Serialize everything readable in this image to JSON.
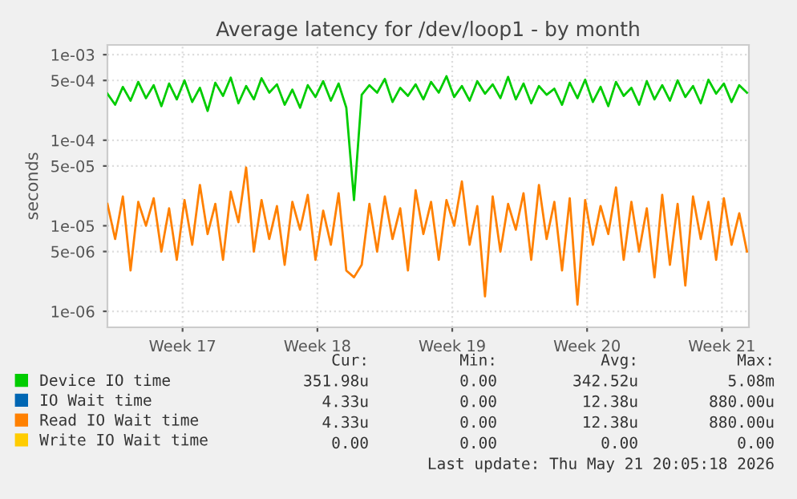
{
  "chart_data": {
    "type": "line",
    "title": "Average latency for /dev/loop1 - by month",
    "ylabel": "seconds",
    "x": [
      "2026-04-18T12:00",
      "2026-04-18T21:36",
      "2026-04-19T07:12",
      "2026-04-19T16:48",
      "2026-04-20T02:24",
      "2026-04-20T12:00",
      "2026-04-20T21:36",
      "2026-04-21T07:12",
      "2026-04-21T16:48",
      "2026-04-22T02:24",
      "2026-04-22T12:00",
      "2026-04-22T21:36",
      "2026-04-23T07:12",
      "2026-04-23T16:48",
      "2026-04-24T02:24",
      "2026-04-24T12:00",
      "2026-04-24T21:36",
      "2026-04-25T07:12",
      "2026-04-25T16:48",
      "2026-04-26T02:24",
      "2026-04-26T12:00",
      "2026-04-26T21:36",
      "2026-04-27T07:12",
      "2026-04-27T16:48",
      "2026-04-28T02:24",
      "2026-04-28T12:00",
      "2026-04-28T21:36",
      "2026-04-29T07:12",
      "2026-04-29T16:48",
      "2026-04-30T02:24",
      "2026-04-30T12:00",
      "2026-04-30T21:36",
      "2026-05-01T07:12",
      "2026-05-01T16:48",
      "2026-05-02T02:24",
      "2026-05-02T12:00",
      "2026-05-02T21:36",
      "2026-05-03T07:12",
      "2026-05-03T16:48",
      "2026-05-04T02:24",
      "2026-05-04T12:00",
      "2026-05-04T21:36",
      "2026-05-05T07:12",
      "2026-05-05T16:48",
      "2026-05-06T02:24",
      "2026-05-06T12:00",
      "2026-05-06T21:36",
      "2026-05-07T07:12",
      "2026-05-07T16:48",
      "2026-05-08T02:24",
      "2026-05-08T12:00",
      "2026-05-08T21:36",
      "2026-05-09T07:12",
      "2026-05-09T16:48",
      "2026-05-10T02:24",
      "2026-05-10T12:00",
      "2026-05-10T21:36",
      "2026-05-11T07:12",
      "2026-05-11T16:48",
      "2026-05-12T02:24",
      "2026-05-12T12:00",
      "2026-05-12T21:36",
      "2026-05-13T07:12",
      "2026-05-13T16:48",
      "2026-05-14T02:24",
      "2026-05-14T12:00",
      "2026-05-14T21:36",
      "2026-05-15T07:12",
      "2026-05-15T16:48",
      "2026-05-16T02:24",
      "2026-05-16T12:00",
      "2026-05-16T21:36",
      "2026-05-17T07:12",
      "2026-05-17T16:48",
      "2026-05-18T02:24",
      "2026-05-18T12:00",
      "2026-05-18T21:36",
      "2026-05-19T07:12",
      "2026-05-19T16:48",
      "2026-05-20T02:24",
      "2026-05-20T12:00",
      "2026-05-20T21:36",
      "2026-05-21T07:12",
      "2026-05-21T16:48"
    ],
    "series": [
      {
        "name": "Device IO time",
        "color": "#00cc00",
        "values": [
          0.00035,
          0.00026,
          0.00042,
          0.00029,
          0.00048,
          0.00031,
          0.00044,
          0.00025,
          0.00046,
          0.0003,
          0.0005,
          0.00028,
          0.00041,
          0.00022,
          0.00047,
          0.00033,
          0.00054,
          0.00027,
          0.00043,
          0.0003,
          0.00053,
          0.00036,
          0.00045,
          0.00026,
          0.00039,
          0.00024,
          0.00044,
          0.00032,
          0.00049,
          0.00029,
          0.00046,
          0.00024,
          2e-05,
          0.00034,
          0.00044,
          0.00036,
          0.00052,
          0.00028,
          0.00041,
          0.00033,
          0.00045,
          0.0003,
          0.00048,
          0.00036,
          0.00056,
          0.00032,
          0.00043,
          0.00029,
          0.00049,
          0.00035,
          0.00045,
          0.00031,
          0.00055,
          0.0003,
          0.00046,
          0.00027,
          0.00043,
          0.00034,
          0.0004,
          0.00026,
          0.00047,
          0.00031,
          0.00051,
          0.00028,
          0.00042,
          0.00025,
          0.00048,
          0.00033,
          0.00041,
          0.00026,
          0.00049,
          0.0003,
          0.00044,
          0.00029,
          0.0005,
          0.00032,
          0.00043,
          0.00027,
          0.00051,
          0.00035,
          0.00046,
          0.00028,
          0.00044,
          0.00036
        ]
      },
      {
        "name": "IO Wait time",
        "color": "#0066b3",
        "values": [
          null,
          null,
          null,
          null,
          null,
          null,
          null,
          null,
          null,
          null,
          null,
          null,
          null,
          null,
          null,
          null,
          null,
          null,
          null,
          null,
          null,
          null,
          null,
          null,
          null,
          null,
          null,
          null,
          null,
          null,
          null,
          null,
          null,
          null,
          null,
          null,
          null,
          null,
          null,
          null,
          null,
          null,
          null,
          null,
          null,
          null,
          null,
          null,
          null,
          null,
          null,
          null,
          null,
          null,
          null,
          null,
          null,
          null,
          null,
          null,
          null,
          null,
          null,
          null,
          null,
          null,
          null,
          null,
          null,
          null,
          null,
          null,
          null,
          null,
          null,
          null,
          null,
          null,
          null,
          null,
          null,
          null,
          null,
          null
        ]
      },
      {
        "name": "Read IO Wait time",
        "color": "#ff8000",
        "values": [
          1.8e-05,
          7e-06,
          2.2e-05,
          3e-06,
          1.9e-05,
          1e-05,
          2.1e-05,
          5e-06,
          1.6e-05,
          4e-06,
          2e-05,
          6e-06,
          3e-05,
          8e-06,
          1.8e-05,
          4e-06,
          2.5e-05,
          1.1e-05,
          4.8e-05,
          5e-06,
          2e-05,
          7e-06,
          1.7e-05,
          3.5e-06,
          1.9e-05,
          9e-06,
          2.3e-05,
          4e-06,
          1.5e-05,
          6e-06,
          2.4e-05,
          3e-06,
          2.5e-06,
          3.5e-06,
          1.8e-05,
          5e-06,
          2.2e-05,
          7e-06,
          1.6e-05,
          3e-06,
          2.6e-05,
          8e-06,
          1.9e-05,
          4e-06,
          2e-05,
          1e-05,
          3.3e-05,
          6e-06,
          1.7e-05,
          1.5e-06,
          2.2e-05,
          5e-06,
          1.8e-05,
          9e-06,
          2.4e-05,
          4e-06,
          3e-05,
          7e-06,
          1.9e-05,
          3e-06,
          2.1e-05,
          1.2e-06,
          2e-05,
          6e-06,
          1.7e-05,
          8e-06,
          2.8e-05,
          4e-06,
          1.9e-05,
          5e-06,
          1.6e-05,
          2.5e-06,
          2.3e-05,
          3.5e-06,
          1.8e-05,
          2e-06,
          2.2e-05,
          7e-06,
          1.9e-05,
          4e-06,
          2.1e-05,
          6e-06,
          1.4e-05,
          5e-06
        ]
      },
      {
        "name": "Write IO Wait time",
        "color": "#ffcc00",
        "values": [
          null,
          null,
          null,
          null,
          null,
          null,
          null,
          null,
          null,
          null,
          null,
          null,
          null,
          null,
          null,
          null,
          null,
          null,
          null,
          null,
          null,
          null,
          null,
          null,
          null,
          null,
          null,
          null,
          null,
          null,
          null,
          null,
          null,
          null,
          null,
          null,
          null,
          null,
          null,
          null,
          null,
          null,
          null,
          null,
          null,
          null,
          null,
          null,
          null,
          null,
          null,
          null,
          null,
          null,
          null,
          null,
          null,
          null,
          null,
          null,
          null,
          null,
          null,
          null,
          null,
          null,
          null,
          null,
          null,
          null,
          null,
          null,
          null,
          null,
          null,
          null,
          null,
          null,
          null,
          null,
          null,
          null,
          null,
          null
        ]
      }
    ],
    "log": "y",
    "xlim": [
      "2026-04-18T12:00",
      "2026-05-21T19:12"
    ],
    "ylim": [
      6.5e-07,
      0.0013
    ],
    "xticks": [
      {
        "value": "2026-04-22T09:36",
        "label": "Week 17"
      },
      {
        "value": "2026-04-29T09:36",
        "label": "Week 18"
      },
      {
        "value": "2026-05-06T09:36",
        "label": "Week 19"
      },
      {
        "value": "2026-05-13T09:36",
        "label": "Week 20"
      },
      {
        "value": "2026-05-20T09:36",
        "label": "Week 21"
      }
    ],
    "yticks": [
      {
        "value": 1e-06,
        "label": "1e-06"
      },
      {
        "value": 5e-06,
        "label": "5e-06"
      },
      {
        "value": 1e-05,
        "label": "1e-05"
      },
      {
        "value": 5e-05,
        "label": "5e-05"
      },
      {
        "value": 0.0001,
        "label": "1e-04"
      },
      {
        "value": 0.0005,
        "label": "5e-04"
      },
      {
        "value": 0.001,
        "label": "1e-03"
      }
    ],
    "grid": true,
    "legend": "bottom",
    "marker": "none",
    "line_style": "solid",
    "annotations": [
      "Cur:",
      "Min:",
      "Avg:",
      "Max:",
      "351.98u",
      "0.00",
      "342.52u",
      "5.08m",
      "4.33u",
      "0.00",
      "12.38u",
      "880.00u",
      "4.33u",
      "0.00",
      "12.38u",
      "880.00u",
      "0.00",
      "0.00",
      "0.00",
      "0.00",
      "Last update: Thu May 21 20:05:18 2026"
    ]
  }
}
